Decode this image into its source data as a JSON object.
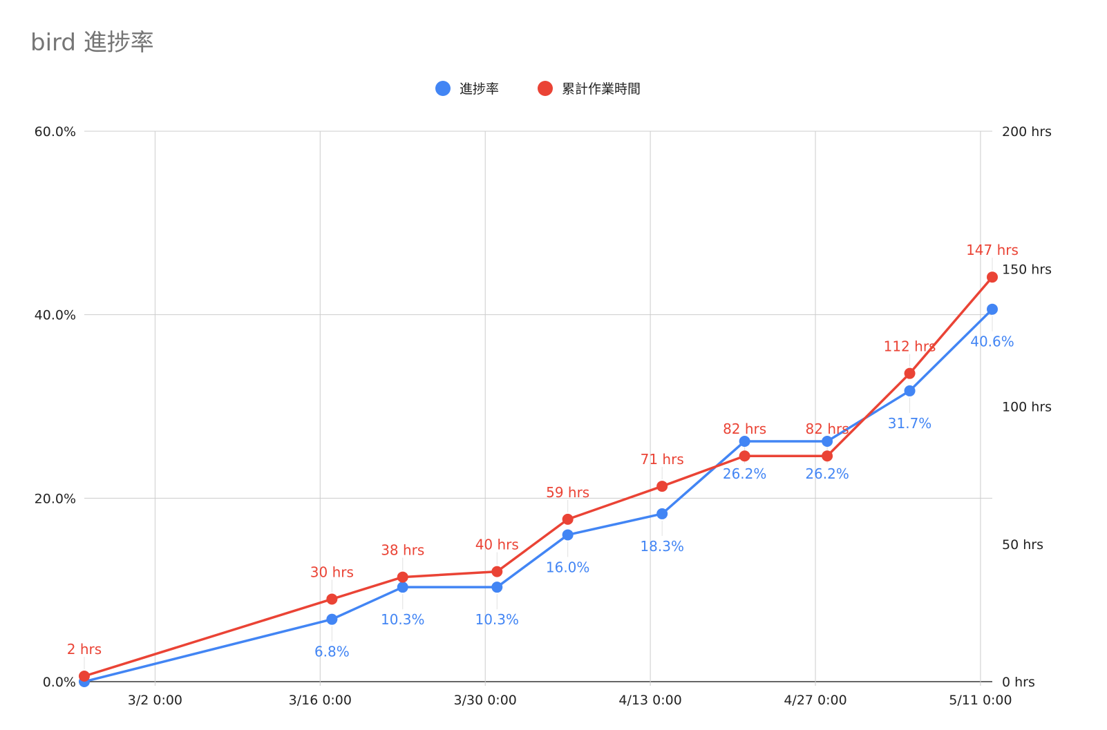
{
  "chart_data": {
    "type": "line",
    "title": "bird 進捗率",
    "legend_position": "top",
    "grid": true,
    "x_axis": {
      "type": "date",
      "range": [
        "2026-02-24",
        "2026-05-12"
      ],
      "ticks": [
        {
          "date": "2026-03-02",
          "label": "3/2 0:00"
        },
        {
          "date": "2026-03-16",
          "label": "3/16 0:00"
        },
        {
          "date": "2026-03-30",
          "label": "3/30 0:00"
        },
        {
          "date": "2026-04-13",
          "label": "4/13 0:00"
        },
        {
          "date": "2026-04-27",
          "label": "4/27 0:00"
        },
        {
          "date": "2026-05-11",
          "label": "5/11 0:00"
        }
      ]
    },
    "y_left": {
      "range": [
        0,
        0.6
      ],
      "ticks": [
        {
          "value": 0,
          "label": "0.0%"
        },
        {
          "value": 0.2,
          "label": "20.0%"
        },
        {
          "value": 0.4,
          "label": "40.0%"
        },
        {
          "value": 0.6,
          "label": "60.0%"
        }
      ]
    },
    "y_right": {
      "range": [
        0,
        200
      ],
      "ticks": [
        {
          "value": 0,
          "label": "0 hrs"
        },
        {
          "value": 50,
          "label": "50 hrs"
        },
        {
          "value": 100,
          "label": "100 hrs"
        },
        {
          "value": 150,
          "label": "150 hrs"
        },
        {
          "value": 200,
          "label": "200 hrs"
        }
      ]
    },
    "series": [
      {
        "name": "進捗率",
        "axis": "left",
        "color": "#4285F4",
        "label_position": "below",
        "points": [
          {
            "x": "2026-02-24",
            "y": 0.0,
            "label": ""
          },
          {
            "x": "2026-03-17",
            "y": 0.068,
            "label": "6.8%"
          },
          {
            "x": "2026-03-23",
            "y": 0.103,
            "label": "10.3%"
          },
          {
            "x": "2026-03-31",
            "y": 0.103,
            "label": "10.3%"
          },
          {
            "x": "2026-04-06",
            "y": 0.16,
            "label": "16.0%"
          },
          {
            "x": "2026-04-14",
            "y": 0.183,
            "label": "18.3%"
          },
          {
            "x": "2026-04-21",
            "y": 0.262,
            "label": "26.2%"
          },
          {
            "x": "2026-04-28",
            "y": 0.262,
            "label": "26.2%"
          },
          {
            "x": "2026-05-05",
            "y": 0.317,
            "label": "31.7%"
          },
          {
            "x": "2026-05-12",
            "y": 0.406,
            "label": "40.6%"
          }
        ]
      },
      {
        "name": "累計作業時間",
        "axis": "right",
        "color": "#EA4335",
        "label_position": "above",
        "points": [
          {
            "x": "2026-02-24",
            "y": 2,
            "label": "2 hrs"
          },
          {
            "x": "2026-03-17",
            "y": 30,
            "label": "30 hrs"
          },
          {
            "x": "2026-03-23",
            "y": 38,
            "label": "38 hrs"
          },
          {
            "x": "2026-03-31",
            "y": 40,
            "label": "40 hrs"
          },
          {
            "x": "2026-04-06",
            "y": 59,
            "label": "59 hrs"
          },
          {
            "x": "2026-04-14",
            "y": 71,
            "label": "71 hrs"
          },
          {
            "x": "2026-04-21",
            "y": 82,
            "label": "82 hrs"
          },
          {
            "x": "2026-04-28",
            "y": 82,
            "label": "82 hrs"
          },
          {
            "x": "2026-05-05",
            "y": 112,
            "label": "112 hrs"
          },
          {
            "x": "2026-05-12",
            "y": 147,
            "label": "147 hrs"
          }
        ]
      }
    ]
  }
}
